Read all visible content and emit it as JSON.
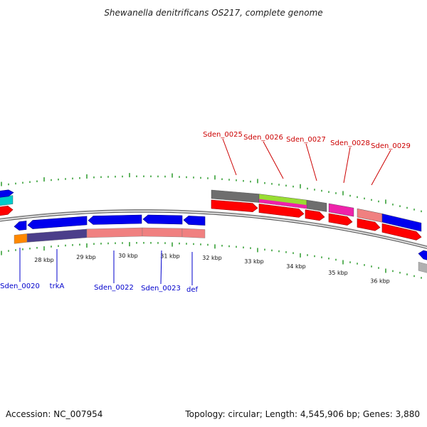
{
  "title": "Shewanella denitrificans OS217, complete genome",
  "footer": {
    "accession": "Accession: NC_007954",
    "topology": "Topology: circular; Length: 4,545,906 bp; Genes: 3,880"
  },
  "colors": {
    "backbone": "#8a8a8a",
    "tick": "#2a9a2a",
    "forward_label": "#cc0000",
    "reverse_label": "#0000cc"
  },
  "scale": {
    "unit": "kbp",
    "labels": [
      "28 kbp",
      "29 kbp",
      "30 kbp",
      "31 kbp",
      "32 kbp",
      "33 kbp",
      "34 kbp",
      "35 kbp",
      "36 kbp"
    ]
  },
  "genes": {
    "forward": [
      {
        "label": "Sden_0025",
        "color": "#cc0000"
      },
      {
        "label": "Sden_0026",
        "color": "#cc0000"
      },
      {
        "label": "Sden_0027",
        "color": "#cc0000"
      },
      {
        "label": "Sden_0028",
        "color": "#cc0000"
      },
      {
        "label": "Sden_0029",
        "color": "#cc0000"
      }
    ],
    "reverse": [
      {
        "label": "Sden_0020",
        "color": "#0000cc"
      },
      {
        "label": "trkA",
        "color": "#0000cc"
      },
      {
        "label": "Sden_0022",
        "color": "#0000cc"
      },
      {
        "label": "Sden_0023",
        "color": "#0000cc"
      },
      {
        "label": "def",
        "color": "#0000cc"
      }
    ]
  },
  "feature_colors": {
    "cds_forward": "#ff0000",
    "cds_reverse": "#0000ee",
    "category_grey": "#6e6e6e",
    "category_lime": "#99dd33",
    "category_magenta": "#ee22aa",
    "category_salmon": "#f08080",
    "category_orange": "#ff8800",
    "category_slate": "#4b3e8a",
    "category_cyan": "#00cccc",
    "category_light_grey": "#b0b0b0"
  }
}
